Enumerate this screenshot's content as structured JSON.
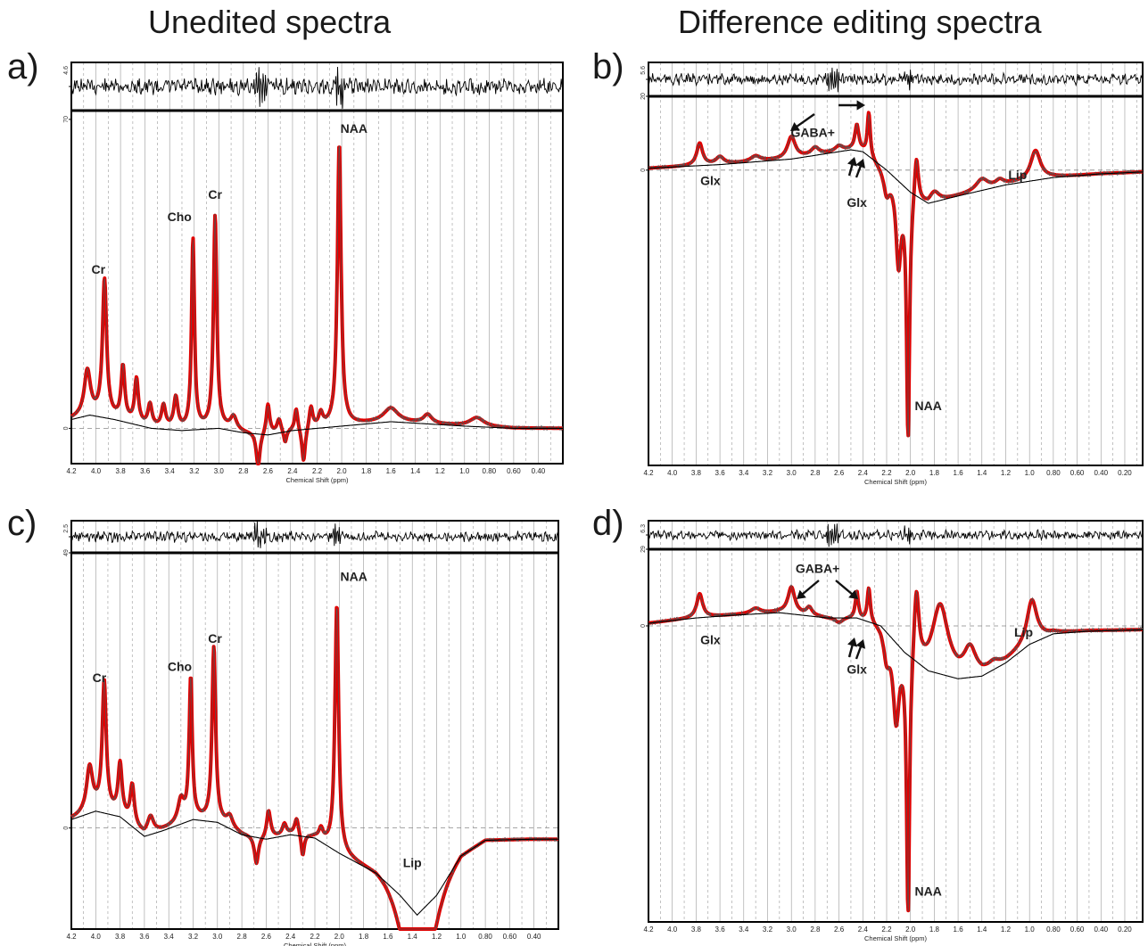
{
  "headings": {
    "left": "Unedited spectra",
    "right": "Difference editing spectra"
  },
  "colors": {
    "fit": "#e00000",
    "data": "#555555",
    "baseline": "#000000",
    "residual": "#000000",
    "frame": "#000000",
    "grid": "#9a9a9a"
  },
  "chart_data": [
    {
      "panel": "a)",
      "type": "line",
      "xlabel": "Chemical Shift (ppm)",
      "xlim": [
        4.2,
        0.2
      ],
      "x_ticks": [
        "4.2",
        "4.0",
        "3.8",
        "3.6",
        "3.4",
        "3.2",
        "3.0",
        "2.8",
        "2.6",
        "2.4",
        "2.2",
        "2.0",
        "1.8",
        "1.6",
        "1.4",
        "1.2",
        "1.0",
        "0.80",
        "0.60",
        "0.40"
      ],
      "ylim": [
        -8,
        72
      ],
      "y_ticks": [
        {
          "value": 70,
          "label": "70"
        },
        {
          "value": 0,
          "label": "0"
        }
      ],
      "residual_scale_label": "4.6",
      "zero_line": true,
      "series": [
        {
          "role": "fit",
          "peaks": [
            {
              "x": 4.07,
              "h": 10,
              "w": 0.03
            },
            {
              "x": 3.93,
              "h": 31,
              "w": 0.02
            },
            {
              "x": 3.78,
              "h": 12,
              "w": 0.018
            },
            {
              "x": 3.67,
              "h": 10,
              "w": 0.018
            },
            {
              "x": 3.56,
              "h": 5,
              "w": 0.02
            },
            {
              "x": 3.45,
              "h": 5,
              "w": 0.02
            },
            {
              "x": 3.35,
              "h": 7,
              "w": 0.02
            },
            {
              "x": 3.21,
              "h": 43,
              "w": 0.014
            },
            {
              "x": 3.03,
              "h": 48,
              "w": 0.016
            },
            {
              "x": 2.88,
              "h": 3,
              "w": 0.03
            },
            {
              "x": 2.68,
              "h": -8,
              "w": 0.018
            },
            {
              "x": 2.6,
              "h": 7,
              "w": 0.017
            },
            {
              "x": 2.51,
              "h": 3,
              "w": 0.02
            },
            {
              "x": 2.46,
              "h": -3,
              "w": 0.015
            },
            {
              "x": 2.37,
              "h": 5,
              "w": 0.015
            },
            {
              "x": 2.31,
              "h": -8,
              "w": 0.017
            },
            {
              "x": 2.25,
              "h": 5,
              "w": 0.017
            },
            {
              "x": 2.17,
              "h": 3,
              "w": 0.02
            },
            {
              "x": 2.02,
              "h": 64,
              "w": 0.018
            },
            {
              "x": 1.6,
              "h": 3,
              "w": 0.07
            },
            {
              "x": 1.3,
              "h": 2,
              "w": 0.04
            },
            {
              "x": 0.9,
              "h": 2,
              "w": 0.07
            }
          ]
        },
        {
          "role": "baseline",
          "points": [
            [
              4.2,
              2
            ],
            [
              4.05,
              3
            ],
            [
              3.85,
              2
            ],
            [
              3.55,
              0
            ],
            [
              3.3,
              -0.5
            ],
            [
              3.0,
              0
            ],
            [
              2.8,
              -1
            ],
            [
              2.6,
              -1.5
            ],
            [
              2.4,
              -0.5
            ],
            [
              2.2,
              0
            ],
            [
              2.0,
              0.5
            ],
            [
              1.6,
              1.5
            ],
            [
              1.3,
              1
            ],
            [
              1.0,
              0.5
            ],
            [
              0.6,
              0
            ],
            [
              0.2,
              0
            ]
          ]
        }
      ],
      "annotations": [
        {
          "text": "NAA",
          "x": 1.9,
          "y": 67
        },
        {
          "text": "Cho",
          "x": 3.32,
          "y": 47
        },
        {
          "text": "Cr",
          "x": 3.03,
          "y": 52
        },
        {
          "text": "Cr",
          "x": 3.98,
          "y": 35
        }
      ]
    },
    {
      "panel": "b)",
      "type": "line",
      "xlabel": "Chemical Shift (ppm)",
      "xlim": [
        4.2,
        0.05
      ],
      "x_ticks": [
        "4.2",
        "4.0",
        "3.8",
        "3.6",
        "3.4",
        "3.2",
        "3.0",
        "2.8",
        "2.6",
        "2.4",
        "2.2",
        "2.0",
        "1.8",
        "1.6",
        "1.4",
        "1.2",
        "1.0",
        "0.80",
        "0.60",
        "0.40",
        "0.20"
      ],
      "ylim": [
        -80,
        20
      ],
      "y_ticks": [
        {
          "value": 20,
          "label": "20"
        },
        {
          "value": 0,
          "label": "0"
        }
      ],
      "residual_scale_label": "5.6",
      "zero_line": true,
      "series": [
        {
          "role": "fit",
          "peaks": [
            {
              "x": 3.77,
              "h": 6,
              "w": 0.03
            },
            {
              "x": 3.6,
              "h": 2,
              "w": 0.04
            },
            {
              "x": 3.3,
              "h": 1.5,
              "w": 0.05
            },
            {
              "x": 3.0,
              "h": 6,
              "w": 0.04
            },
            {
              "x": 2.8,
              "h": 2,
              "w": 0.04
            },
            {
              "x": 2.6,
              "h": 1.5,
              "w": 0.04
            },
            {
              "x": 2.45,
              "h": 7,
              "w": 0.02
            },
            {
              "x": 2.35,
              "h": 12,
              "w": 0.015
            },
            {
              "x": 2.2,
              "h": -6,
              "w": 0.03
            },
            {
              "x": 2.1,
              "h": -22,
              "w": 0.025
            },
            {
              "x": 2.02,
              "h": -66,
              "w": 0.015
            },
            {
              "x": 1.95,
              "h": 13,
              "w": 0.02
            },
            {
              "x": 1.8,
              "h": 3,
              "w": 0.05
            },
            {
              "x": 1.4,
              "h": 3,
              "w": 0.06
            },
            {
              "x": 1.25,
              "h": 1.5,
              "w": 0.04
            },
            {
              "x": 0.95,
              "h": 8,
              "w": 0.05
            }
          ]
        },
        {
          "role": "baseline",
          "points": [
            [
              4.2,
              0.5
            ],
            [
              3.6,
              1.5
            ],
            [
              3.0,
              3
            ],
            [
              2.8,
              4
            ],
            [
              2.5,
              5.5
            ],
            [
              2.4,
              5
            ],
            [
              2.2,
              0
            ],
            [
              2.0,
              -6
            ],
            [
              1.85,
              -9
            ],
            [
              1.6,
              -7
            ],
            [
              1.2,
              -4
            ],
            [
              0.8,
              -2
            ],
            [
              0.4,
              -1
            ],
            [
              0.05,
              -0.5
            ]
          ]
        }
      ],
      "annotations": [
        {
          "text": "GABA+",
          "x": 2.82,
          "y": 9
        },
        {
          "text": "Glx",
          "x": 3.68,
          "y": -4
        },
        {
          "text": "Glx",
          "x": 2.45,
          "y": -10
        },
        {
          "text": "Lip",
          "x": 1.1,
          "y": -2.5
        },
        {
          "text": "NAA",
          "x": 1.85,
          "y": -65
        }
      ]
    },
    {
      "panel": "c)",
      "type": "line",
      "xlabel": "Chemical Shift (ppm)",
      "xlim": [
        4.2,
        0.2
      ],
      "x_ticks": [
        "4.2",
        "4.0",
        "3.8",
        "3.6",
        "3.4",
        "3.2",
        "3.0",
        "2.8",
        "2.6",
        "2.4",
        "2.2",
        "2.0",
        "1.8",
        "1.6",
        "1.4",
        "1.2",
        "1.0",
        "0.80",
        "0.60",
        "0.40"
      ],
      "ylim": [
        -18,
        49
      ],
      "y_ticks": [
        {
          "value": 49,
          "label": "49"
        },
        {
          "value": 0,
          "label": "0"
        }
      ],
      "residual_scale_label": "2.5",
      "zero_line": true,
      "series": [
        {
          "role": "fit",
          "peaks": [
            {
              "x": 4.05,
              "h": 8,
              "w": 0.03
            },
            {
              "x": 3.93,
              "h": 23,
              "w": 0.02
            },
            {
              "x": 3.8,
              "h": 9,
              "w": 0.02
            },
            {
              "x": 3.7,
              "h": 7,
              "w": 0.02
            },
            {
              "x": 3.55,
              "h": 3,
              "w": 0.03
            },
            {
              "x": 3.3,
              "h": 4,
              "w": 0.03
            },
            {
              "x": 3.22,
              "h": 25,
              "w": 0.015
            },
            {
              "x": 3.03,
              "h": 31,
              "w": 0.017
            },
            {
              "x": 2.9,
              "h": 2,
              "w": 0.03
            },
            {
              "x": 2.68,
              "h": -5,
              "w": 0.02
            },
            {
              "x": 2.58,
              "h": 5,
              "w": 0.02
            },
            {
              "x": 2.45,
              "h": 2,
              "w": 0.02
            },
            {
              "x": 2.35,
              "h": 3,
              "w": 0.02
            },
            {
              "x": 2.3,
              "h": -4,
              "w": 0.015
            },
            {
              "x": 2.15,
              "h": 2,
              "w": 0.02
            },
            {
              "x": 2.02,
              "h": 44,
              "w": 0.018
            }
          ]
        },
        {
          "role": "baseline",
          "points": [
            [
              4.2,
              1.5
            ],
            [
              4.0,
              3
            ],
            [
              3.8,
              2
            ],
            [
              3.6,
              -1.5
            ],
            [
              3.45,
              -0.5
            ],
            [
              3.2,
              1.5
            ],
            [
              3.0,
              1
            ],
            [
              2.8,
              -1.2
            ],
            [
              2.6,
              -2
            ],
            [
              2.4,
              -1.2
            ],
            [
              2.2,
              -1.8
            ],
            [
              2.0,
              -4.5
            ],
            [
              1.7,
              -8
            ],
            [
              1.5,
              -12
            ],
            [
              1.36,
              -15.5
            ],
            [
              1.2,
              -12
            ],
            [
              1.0,
              -5
            ],
            [
              0.8,
              -2.2
            ],
            [
              0.4,
              -2
            ],
            [
              0.2,
              -2
            ]
          ]
        }
      ],
      "lip_dip": {
        "x": 1.36,
        "h": -14,
        "w": 0.16
      },
      "annotations": [
        {
          "text": "NAA",
          "x": 1.88,
          "y": 44
        },
        {
          "text": "Cho",
          "x": 3.31,
          "y": 28
        },
        {
          "text": "Cr",
          "x": 3.02,
          "y": 33
        },
        {
          "text": "Cr",
          "x": 3.97,
          "y": 26
        },
        {
          "text": "Lip",
          "x": 1.4,
          "y": -7
        }
      ]
    },
    {
      "panel": "d)",
      "type": "line",
      "xlabel": "Chemical Shift (ppm)",
      "xlim": [
        4.2,
        0.05
      ],
      "x_ticks": [
        "4.2",
        "4.0",
        "3.8",
        "3.6",
        "3.4",
        "3.2",
        "3.0",
        "2.8",
        "2.6",
        "2.4",
        "2.2",
        "2.0",
        "1.8",
        "1.6",
        "1.4",
        "1.2",
        "1.0",
        "0.80",
        "0.60",
        "0.40",
        "0.20"
      ],
      "ylim": [
        -112,
        29
      ],
      "y_ticks": [
        {
          "value": 29,
          "label": "29"
        },
        {
          "value": 0,
          "label": "0"
        }
      ],
      "residual_scale_label": "6.3",
      "zero_line": true,
      "series": [
        {
          "role": "fit",
          "peaks": [
            {
              "x": 3.77,
              "h": 9,
              "w": 0.03
            },
            {
              "x": 3.3,
              "h": 2,
              "w": 0.05
            },
            {
              "x": 3.0,
              "h": 10,
              "w": 0.035
            },
            {
              "x": 2.85,
              "h": 3,
              "w": 0.03
            },
            {
              "x": 2.6,
              "h": -2,
              "w": 0.04
            },
            {
              "x": 2.45,
              "h": 10,
              "w": 0.015
            },
            {
              "x": 2.35,
              "h": 13,
              "w": 0.016
            },
            {
              "x": 2.2,
              "h": -10,
              "w": 0.03
            },
            {
              "x": 2.12,
              "h": -30,
              "w": 0.03
            },
            {
              "x": 2.02,
              "h": -100,
              "w": 0.015
            },
            {
              "x": 1.95,
              "h": 28,
              "w": 0.025
            },
            {
              "x": 1.75,
              "h": 26,
              "w": 0.08
            },
            {
              "x": 1.5,
              "h": 10,
              "w": 0.06
            },
            {
              "x": 1.3,
              "h": 2,
              "w": 0.05
            },
            {
              "x": 0.98,
              "h": 16,
              "w": 0.05
            }
          ]
        },
        {
          "role": "baseline",
          "points": [
            [
              4.2,
              1
            ],
            [
              3.8,
              3
            ],
            [
              3.5,
              4
            ],
            [
              3.1,
              5
            ],
            [
              2.7,
              3
            ],
            [
              2.45,
              3
            ],
            [
              2.25,
              0
            ],
            [
              2.05,
              -10
            ],
            [
              1.85,
              -17
            ],
            [
              1.6,
              -20
            ],
            [
              1.4,
              -19
            ],
            [
              1.2,
              -14
            ],
            [
              1.0,
              -7
            ],
            [
              0.8,
              -3
            ],
            [
              0.5,
              -2
            ],
            [
              0.05,
              -1.5
            ]
          ]
        }
      ],
      "annotations": [
        {
          "text": "GABA+",
          "x": 2.78,
          "y": 20
        },
        {
          "text": "Glx",
          "x": 3.68,
          "y": -7
        },
        {
          "text": "Glx",
          "x": 2.45,
          "y": -18
        },
        {
          "text": "Lip",
          "x": 1.05,
          "y": -4
        },
        {
          "text": "NAA",
          "x": 1.85,
          "y": -102
        }
      ]
    }
  ]
}
